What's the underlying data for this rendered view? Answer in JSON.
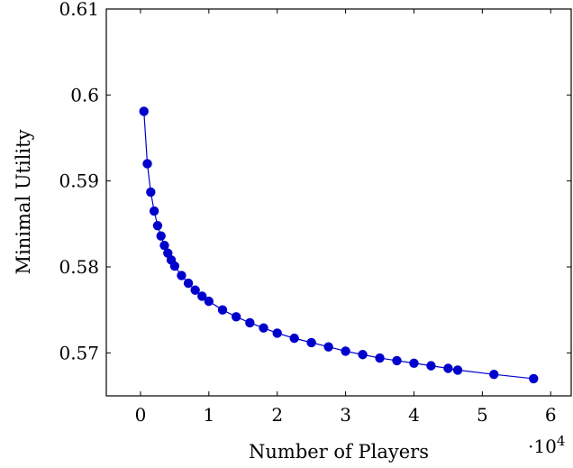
{
  "chart_data": {
    "type": "scatter",
    "xlabel": "Number of Players",
    "ylabel": "Minimal Utility",
    "x_multiplier_label": "·10",
    "x_multiplier_exponent": "4",
    "xlim": [
      -0.5,
      6.3
    ],
    "ylim": [
      0.565,
      0.61
    ],
    "x_ticks": [
      0,
      1,
      2,
      3,
      4,
      5,
      6
    ],
    "y_ticks": [
      0.57,
      0.58,
      0.59,
      0.6,
      0.61
    ],
    "x_tick_labels": [
      "0",
      "1",
      "2",
      "3",
      "4",
      "5",
      "6"
    ],
    "y_tick_labels": [
      "0.57",
      "0.58",
      "0.59",
      "0.6",
      "0.61"
    ],
    "grid": false,
    "color": "#0000cc",
    "series": [
      {
        "x": [
          0.05,
          0.1,
          0.15,
          0.2,
          0.25,
          0.3,
          0.35,
          0.4,
          0.45,
          0.5,
          0.6,
          0.7,
          0.8,
          0.9,
          1.0,
          1.2,
          1.4,
          1.6,
          1.8,
          2.0,
          2.25,
          2.5,
          2.75,
          3.0,
          3.25,
          3.5,
          3.75,
          4.0,
          4.25,
          4.5,
          4.64,
          5.17,
          5.75
        ],
        "y": [
          0.5981,
          0.592,
          0.5887,
          0.5865,
          0.5848,
          0.5836,
          0.5825,
          0.5816,
          0.5808,
          0.5801,
          0.579,
          0.5781,
          0.5773,
          0.5766,
          0.576,
          0.575,
          0.5742,
          0.5735,
          0.5729,
          0.5723,
          0.5717,
          0.5712,
          0.5707,
          0.5702,
          0.5698,
          0.5694,
          0.5691,
          0.5688,
          0.5685,
          0.5682,
          0.568,
          0.5675,
          0.567
        ]
      }
    ]
  }
}
